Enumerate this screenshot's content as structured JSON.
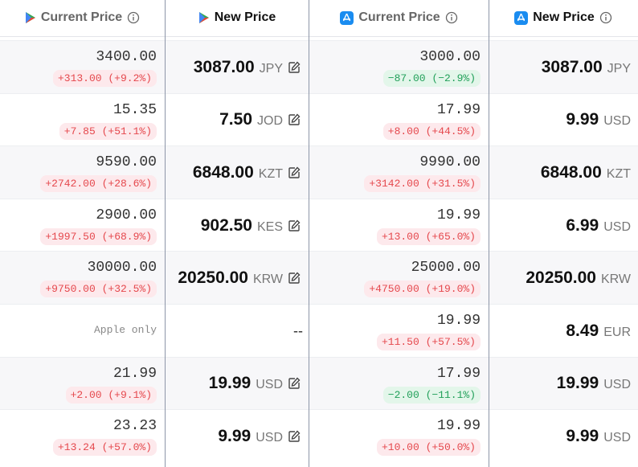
{
  "header": {
    "google_current": "Current Price",
    "google_new": "New Price",
    "apple_current": "Current Price",
    "apple_new": "New Price"
  },
  "rows": [
    {
      "google_current": {
        "price": "3400.00",
        "change": "+313.00 (+9.2%)"
      },
      "google_new": {
        "price": "3087.00",
        "currency": "JPY"
      },
      "apple_current": {
        "price": "3000.00",
        "change": "−87.00 (−2.9%)"
      },
      "apple_new": {
        "price": "3087.00",
        "currency": "JPY"
      }
    },
    {
      "google_current": {
        "price": "15.35",
        "change": "+7.85 (+51.1%)"
      },
      "google_new": {
        "price": "7.50",
        "currency": "JOD"
      },
      "apple_current": {
        "price": "17.99",
        "change": "+8.00 (+44.5%)"
      },
      "apple_new": {
        "price": "9.99",
        "currency": "USD"
      }
    },
    {
      "google_current": {
        "price": "9590.00",
        "change": "+2742.00 (+28.6%)"
      },
      "google_new": {
        "price": "6848.00",
        "currency": "KZT"
      },
      "apple_current": {
        "price": "9990.00",
        "change": "+3142.00 (+31.5%)"
      },
      "apple_new": {
        "price": "6848.00",
        "currency": "KZT"
      }
    },
    {
      "google_current": {
        "price": "2900.00",
        "change": "+1997.50 (+68.9%)"
      },
      "google_new": {
        "price": "902.50",
        "currency": "KES"
      },
      "apple_current": {
        "price": "19.99",
        "change": "+13.00 (+65.0%)"
      },
      "apple_new": {
        "price": "6.99",
        "currency": "USD"
      }
    },
    {
      "google_current": {
        "price": "30000.00",
        "change": "+9750.00 (+32.5%)"
      },
      "google_new": {
        "price": "20250.00",
        "currency": "KRW"
      },
      "apple_current": {
        "price": "25000.00",
        "change": "+4750.00 (+19.0%)"
      },
      "apple_new": {
        "price": "20250.00",
        "currency": "KRW"
      }
    },
    {
      "google_current": {
        "note": "Apple only"
      },
      "google_new": {
        "placeholder": "--"
      },
      "apple_current": {
        "price": "19.99",
        "change": "+11.50 (+57.5%)"
      },
      "apple_new": {
        "price": "8.49",
        "currency": "EUR"
      }
    },
    {
      "google_current": {
        "price": "21.99",
        "change": "+2.00 (+9.1%)"
      },
      "google_new": {
        "price": "19.99",
        "currency": "USD"
      },
      "apple_current": {
        "price": "17.99",
        "change": "−2.00 (−11.1%)"
      },
      "apple_new": {
        "price": "19.99",
        "currency": "USD"
      }
    },
    {
      "google_current": {
        "price": "23.23",
        "change": "+13.24 (+57.0%)"
      },
      "google_new": {
        "price": "9.99",
        "currency": "USD"
      },
      "apple_current": {
        "price": "19.99",
        "change": "+10.00 (+50.0%)"
      },
      "apple_new": {
        "price": "9.99",
        "currency": "USD"
      }
    }
  ]
}
